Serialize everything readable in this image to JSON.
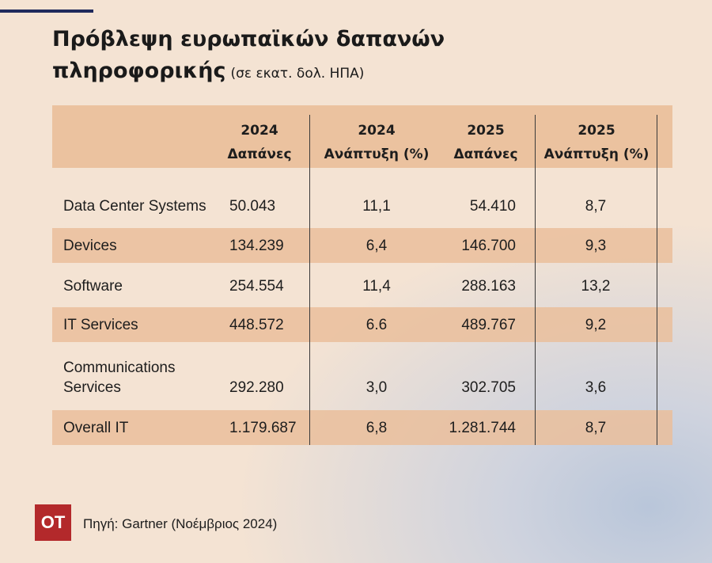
{
  "header": {
    "title_line1": "Πρόβλεψη ευρωπαϊκών δαπανών",
    "title_line2": "πληροφορικής",
    "subtitle": "(σε εκατ. δολ. ΗΠΑ)"
  },
  "table": {
    "columns": [
      {
        "year": "2024",
        "label": "Δαπάνες"
      },
      {
        "year": "2024",
        "label": "Ανάπτυξη (%)"
      },
      {
        "year": "2025",
        "label": "Δαπάνες"
      },
      {
        "year": "2025",
        "label": "Ανάπτυξη (%)"
      }
    ],
    "rows": [
      [
        "Data Center Systems",
        "50.043",
        "11,1",
        "54.410",
        "8,7"
      ],
      [
        "Devices",
        "134.239",
        "6,4",
        "146.700",
        "9,3"
      ],
      [
        "Software",
        "254.554",
        "11,4",
        "288.163",
        "13,2"
      ],
      [
        "IT Services",
        "448.572",
        "6.6",
        "489.767",
        "9,2"
      ],
      [
        "Communications Services",
        "292.280",
        "3,0",
        "302.705",
        "3,6"
      ],
      [
        "Overall IT",
        "1.179.687",
        "6,8",
        "1.281.744",
        "8,7"
      ]
    ]
  },
  "footer": {
    "logo": "OT",
    "source": "Πηγή:  Gartner (Νοέμβριος 2024)"
  }
}
